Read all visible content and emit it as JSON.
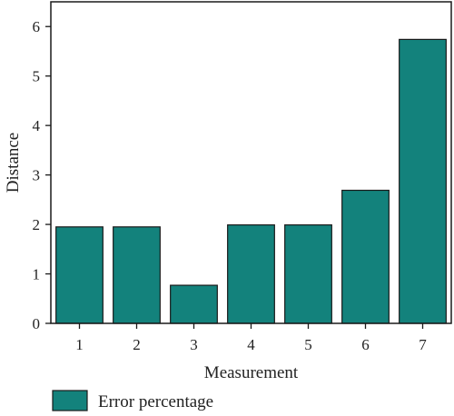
{
  "chart_data": {
    "type": "bar",
    "categories": [
      "1",
      "2",
      "3",
      "4",
      "5",
      "6",
      "7"
    ],
    "series": [
      {
        "name": "Error percentage",
        "values": [
          1.95,
          1.95,
          0.77,
          1.99,
          1.99,
          2.69,
          5.74
        ]
      }
    ],
    "xlabel": "Measurement",
    "ylabel": "Distance",
    "ylim": [
      0,
      6.5
    ],
    "yticks": [
      0,
      1,
      2,
      3,
      4,
      5,
      6
    ],
    "grid": false,
    "legend_position": "bottom-left",
    "bar_color": "#13827c",
    "bar_edge_color": "#1a1a1a"
  }
}
